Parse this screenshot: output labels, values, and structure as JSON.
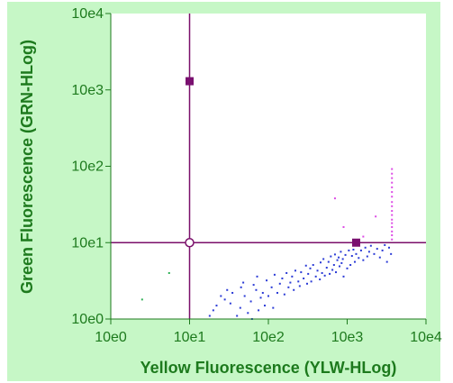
{
  "chart_data": {
    "type": "scatter",
    "title": "",
    "xlabel": "Yellow Fluorescence (YLW-HLog)",
    "ylabel": "Green Fluorescence (GRN-HLog)",
    "x_scale": "log",
    "y_scale": "log",
    "xlim": [
      1,
      10000
    ],
    "ylim": [
      1,
      10000
    ],
    "x_ticks": [
      1,
      10,
      100,
      1000,
      10000
    ],
    "y_ticks": [
      1,
      10,
      100,
      1000,
      10000
    ],
    "x_tick_labels": [
      "10e0",
      "10e1",
      "10e2",
      "10e3",
      "10e4"
    ],
    "y_tick_labels": [
      "10e0",
      "10e1",
      "10e2",
      "10e3",
      "10e4"
    ],
    "grid": false,
    "legend": "none",
    "colors": {
      "page_background": "#ffffff",
      "panel_background": "#c6f7c6",
      "plot_background": "#ffffff",
      "axis_and_text": "#1d7a1d",
      "gate_line": "#7a0f6a",
      "gate_marker": "#7a1070",
      "blue_events": "#2b3bd6",
      "magenta_events": "#dd4be5",
      "green_events": "#2db055"
    },
    "quadrant_gate": {
      "x": 10,
      "y": 10,
      "handle_markers": [
        {
          "x": 10,
          "y": 1300
        },
        {
          "x": 1300,
          "y": 10
        }
      ],
      "center_marker": {
        "x": 10,
        "y": 10
      }
    },
    "series": [
      {
        "color": "blue",
        "points": [
          [
            18,
            1.1
          ],
          [
            20,
            1.3
          ],
          [
            22,
            1.5
          ],
          [
            25,
            2.0
          ],
          [
            28,
            1.8
          ],
          [
            30,
            2.4
          ],
          [
            33,
            1.6
          ],
          [
            35,
            2.2
          ],
          [
            40,
            1.1
          ],
          [
            44,
            1.4
          ],
          [
            45,
            2.6
          ],
          [
            48,
            3.0
          ],
          [
            50,
            2.0
          ],
          [
            55,
            1.2
          ],
          [
            60,
            1.7
          ],
          [
            62,
            1.0
          ],
          [
            65,
            2.8
          ],
          [
            70,
            2.4
          ],
          [
            72,
            3.6
          ],
          [
            75,
            1.3
          ],
          [
            80,
            1.9
          ],
          [
            85,
            2.2
          ],
          [
            90,
            1.5
          ],
          [
            95,
            3.2
          ],
          [
            100,
            2.0
          ],
          [
            110,
            2.6
          ],
          [
            115,
            1.4
          ],
          [
            120,
            3.8
          ],
          [
            130,
            2.2
          ],
          [
            140,
            2.9
          ],
          [
            150,
            3.4
          ],
          [
            160,
            2.1
          ],
          [
            170,
            4.0
          ],
          [
            180,
            2.6
          ],
          [
            190,
            3.0
          ],
          [
            200,
            3.6
          ],
          [
            210,
            2.4
          ],
          [
            220,
            4.3
          ],
          [
            240,
            3.1
          ],
          [
            250,
            2.7
          ],
          [
            260,
            4.1
          ],
          [
            280,
            3.4
          ],
          [
            300,
            5.0
          ],
          [
            310,
            2.9
          ],
          [
            320,
            3.9
          ],
          [
            340,
            4.6
          ],
          [
            350,
            3.1
          ],
          [
            370,
            5.1
          ],
          [
            400,
            3.6
          ],
          [
            420,
            4.3
          ],
          [
            450,
            3.3
          ],
          [
            460,
            5.5
          ],
          [
            480,
            4.0
          ],
          [
            500,
            6.1
          ],
          [
            520,
            3.7
          ],
          [
            550,
            4.7
          ],
          [
            580,
            5.6
          ],
          [
            600,
            3.9
          ],
          [
            620,
            6.6
          ],
          [
            650,
            4.4
          ],
          [
            680,
            5.1
          ],
          [
            700,
            7.0
          ],
          [
            720,
            4.1
          ],
          [
            750,
            5.9
          ],
          [
            780,
            6.4
          ],
          [
            800,
            4.9
          ],
          [
            830,
            7.6
          ],
          [
            850,
            5.4
          ],
          [
            880,
            6.1
          ],
          [
            900,
            3.6
          ],
          [
            950,
            6.9
          ],
          [
            1000,
            4.6
          ],
          [
            1050,
            7.9
          ],
          [
            1100,
            5.1
          ],
          [
            1150,
            6.7
          ],
          [
            1200,
            8.1
          ],
          [
            1250,
            5.6
          ],
          [
            1300,
            7.1
          ],
          [
            1400,
            6.3
          ],
          [
            1500,
            7.9
          ],
          [
            1600,
            5.9
          ],
          [
            1700,
            8.6
          ],
          [
            1800,
            6.6
          ],
          [
            1900,
            7.6
          ],
          [
            2000,
            9.1
          ],
          [
            2200,
            7.1
          ],
          [
            2400,
            8.3
          ],
          [
            2600,
            6.4
          ],
          [
            2800,
            7.9
          ],
          [
            3000,
            9.3
          ],
          [
            3200,
            5.6
          ],
          [
            3400,
            8.6
          ],
          [
            3600,
            7.1
          ]
        ]
      },
      {
        "color": "magenta",
        "points": [
          [
            700,
            38
          ],
          [
            900,
            16
          ],
          [
            1600,
            12
          ],
          [
            2300,
            22
          ],
          [
            3700,
            11
          ],
          [
            3700,
            12.5
          ],
          [
            3700,
            14
          ],
          [
            3700,
            16
          ],
          [
            3700,
            18
          ],
          [
            3700,
            20
          ],
          [
            3700,
            23
          ],
          [
            3700,
            26
          ],
          [
            3700,
            30
          ],
          [
            3700,
            34
          ],
          [
            3700,
            40
          ],
          [
            3700,
            46
          ],
          [
            3700,
            53
          ],
          [
            3700,
            61
          ],
          [
            3700,
            70
          ],
          [
            3700,
            80
          ],
          [
            3700,
            92
          ]
        ]
      },
      {
        "color": "green",
        "points": [
          [
            2.5,
            1.8
          ],
          [
            5.5,
            4.0
          ]
        ]
      }
    ]
  }
}
